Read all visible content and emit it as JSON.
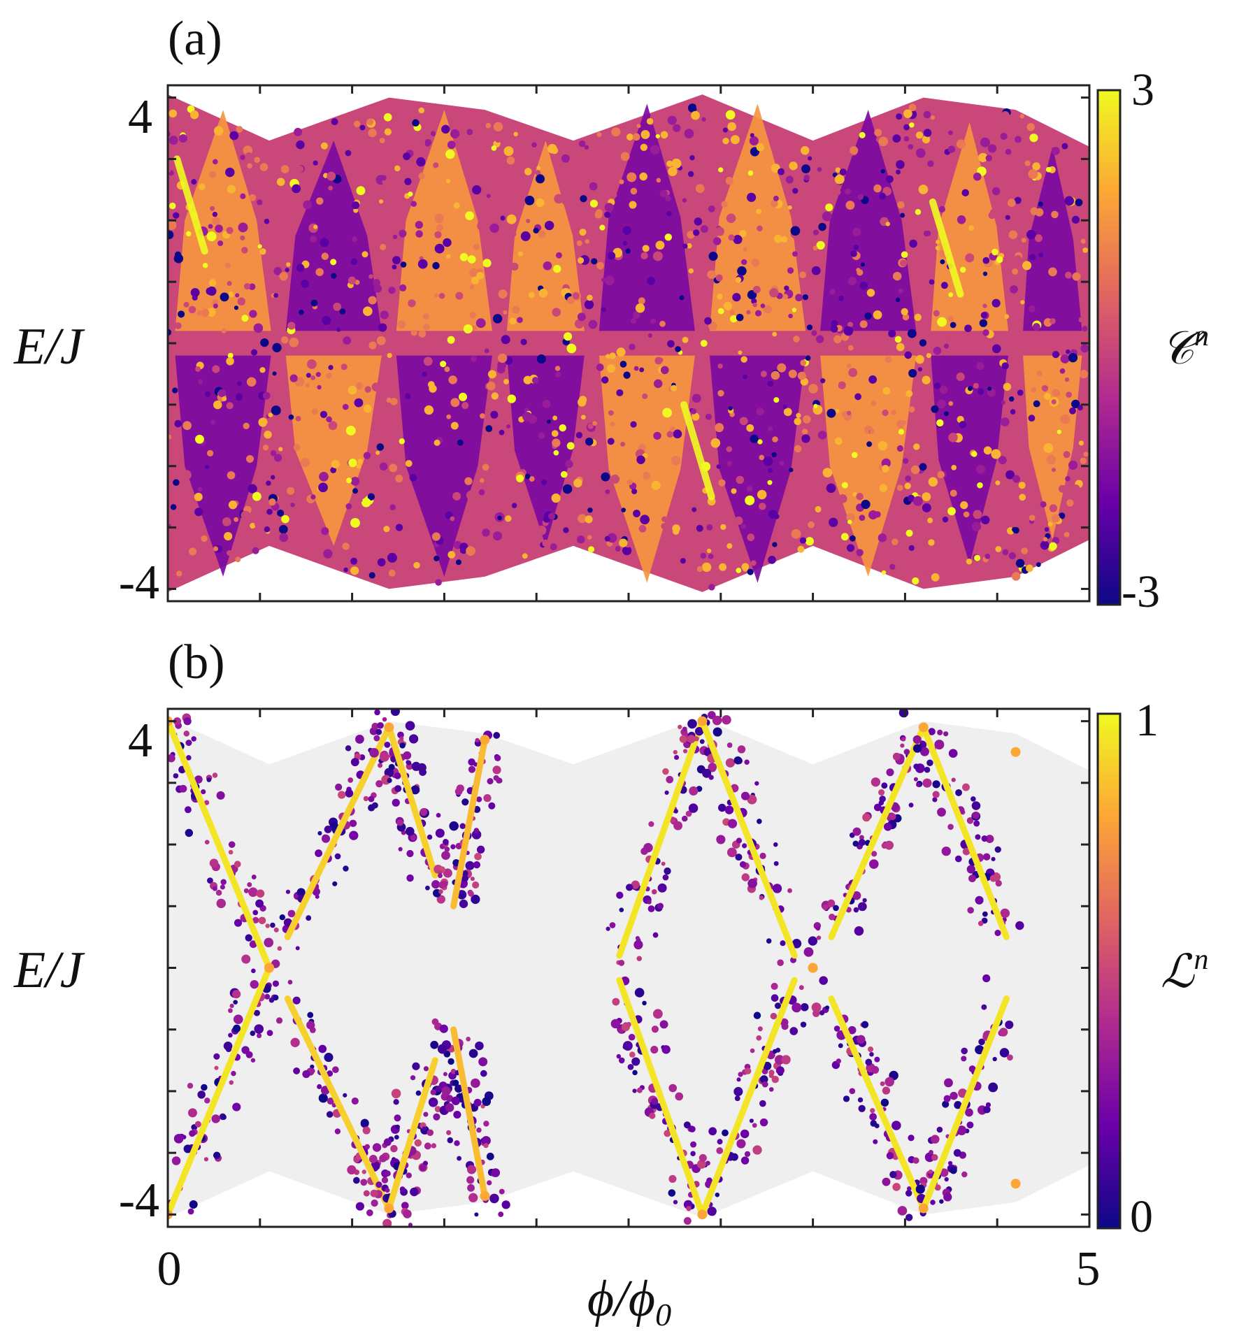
{
  "chart_data": [
    {
      "type": "heatmap",
      "panel_label": "(a)",
      "title": "",
      "xlabel": "",
      "ylabel": "E/J",
      "xlim": [
        0,
        5
      ],
      "ylim": [
        -4.2,
        4.2
      ],
      "yticks": [
        -4,
        -3,
        -2,
        -1,
        0,
        1,
        2,
        3,
        4
      ],
      "ytick_labels": [
        "-4",
        "4"
      ],
      "colorbar": {
        "label": "𝒞",
        "label_sup": "n",
        "min": -3,
        "max": 3,
        "tick_labels": [
          "3",
          "-3"
        ],
        "colormap": "plasma"
      },
      "band_envelope": {
        "x": [
          0,
          0.55,
          1.2,
          1.72,
          2.2,
          2.9,
          3.5,
          4.1,
          4.6,
          5
        ],
        "upper": [
          4.05,
          3.3,
          4.0,
          3.8,
          3.3,
          4.05,
          3.3,
          4.0,
          3.8,
          3.2
        ],
        "lower": [
          -4.05,
          -3.3,
          -4.0,
          -3.8,
          -3.3,
          -4.05,
          -3.3,
          -4.0,
          -3.8,
          -3.2
        ]
      },
      "regions": [
        {
          "x": [
            0,
            0.6
          ],
          "y": [
            0.2,
            3.8
          ],
          "value": 1.5
        },
        {
          "x": [
            0,
            0.6
          ],
          "y": [
            -3.8,
            -0.2
          ],
          "value": -1.5
        },
        {
          "x": [
            0.6,
            1.2
          ],
          "y": [
            0.2,
            3.3
          ],
          "value": -1.5
        },
        {
          "x": [
            0.6,
            1.2
          ],
          "y": [
            -3.3,
            -0.2
          ],
          "value": 1.5
        },
        {
          "x": [
            1.2,
            1.8
          ],
          "y": [
            0.2,
            3.8
          ],
          "value": 1.5
        },
        {
          "x": [
            1.2,
            1.8
          ],
          "y": [
            -3.8,
            -0.2
          ],
          "value": -1.5
        },
        {
          "x": [
            1.8,
            2.3
          ],
          "y": [
            0.2,
            3.3
          ],
          "value": 1.5
        },
        {
          "x": [
            1.8,
            2.3
          ],
          "y": [
            -3.3,
            -0.2
          ],
          "value": -1.5
        },
        {
          "x": [
            2.3,
            2.9
          ],
          "y": [
            0.2,
            3.9
          ],
          "value": -1.5
        },
        {
          "x": [
            2.3,
            2.9
          ],
          "y": [
            -3.9,
            -0.2
          ],
          "value": 1.5
        },
        {
          "x": [
            2.9,
            3.5
          ],
          "y": [
            0.2,
            3.9
          ],
          "value": 1.5
        },
        {
          "x": [
            2.9,
            3.5
          ],
          "y": [
            -3.9,
            -0.2
          ],
          "value": -1.5
        },
        {
          "x": [
            3.5,
            4.1
          ],
          "y": [
            0.2,
            3.8
          ],
          "value": -1.5
        },
        {
          "x": [
            3.5,
            4.1
          ],
          "y": [
            -3.8,
            -0.2
          ],
          "value": 1.5
        },
        {
          "x": [
            4.1,
            4.6
          ],
          "y": [
            0.2,
            3.6
          ],
          "value": 1.5
        },
        {
          "x": [
            4.1,
            4.6
          ],
          "y": [
            -3.6,
            -0.2
          ],
          "value": -1.5
        },
        {
          "x": [
            4.6,
            5
          ],
          "y": [
            0.2,
            3.2
          ],
          "value": -1.5
        },
        {
          "x": [
            4.6,
            5
          ],
          "y": [
            -3.2,
            -0.2
          ],
          "value": 1.5
        }
      ],
      "highlight_streaks": [
        {
          "x0": 0.05,
          "y0": 3.0,
          "x1": 0.2,
          "y1": 1.5,
          "value": 3
        },
        {
          "x0": 2.8,
          "y0": -1.0,
          "x1": 2.95,
          "y1": -2.5,
          "value": 3
        },
        {
          "x0": 4.15,
          "y0": 2.3,
          "x1": 4.3,
          "y1": 0.8,
          "value": 3
        }
      ]
    },
    {
      "type": "scatter",
      "panel_label": "(b)",
      "title": "",
      "xlabel": "ϕ/ϕ",
      "xlabel_sub": "0",
      "ylabel": "E/J",
      "xlim": [
        0,
        5
      ],
      "ylim": [
        -4.2,
        4.2
      ],
      "xticks": [
        0,
        0.5,
        1,
        1.5,
        2,
        2.5,
        3,
        3.5,
        4,
        4.5,
        5
      ],
      "xtick_labels": [
        "0",
        "5"
      ],
      "yticks": [
        -4,
        -3,
        -2,
        -1,
        0,
        1,
        2,
        3,
        4
      ],
      "ytick_labels": [
        "-4",
        "4"
      ],
      "colorbar": {
        "label": "ℒ",
        "label_sup": "n",
        "min": 0,
        "max": 1,
        "tick_labels": [
          "1",
          "0"
        ],
        "colormap": "plasma"
      },
      "apex_points": [
        {
          "x": 0,
          "y": 4
        },
        {
          "x": 0.55,
          "y": 0
        },
        {
          "x": 1.2,
          "y": 3.9
        },
        {
          "x": 1.72,
          "y": 3.7
        },
        {
          "x": 2.9,
          "y": 4
        },
        {
          "x": 3.5,
          "y": 0
        },
        {
          "x": 4.1,
          "y": 3.9
        },
        {
          "x": 4.6,
          "y": 3.5
        }
      ],
      "localized_arcs": [
        {
          "x0": 0,
          "y0": 4,
          "x1": 0.55,
          "y1": 0,
          "value": 0.95
        },
        {
          "x0": 0,
          "y0": -4,
          "x1": 0.55,
          "y1": 0,
          "value": 0.95
        },
        {
          "x0": 0.65,
          "y0": 0.5,
          "x1": 1.2,
          "y1": 3.9,
          "value": 0.9
        },
        {
          "x0": 1.2,
          "y0": 3.9,
          "x1": 1.45,
          "y1": 1.5,
          "value": 0.9
        },
        {
          "x0": 0.65,
          "y0": -0.5,
          "x1": 1.2,
          "y1": -3.9,
          "value": 0.9
        },
        {
          "x0": 1.2,
          "y0": -3.9,
          "x1": 1.45,
          "y1": -1.5,
          "value": 0.9
        },
        {
          "x0": 1.55,
          "y0": 1.0,
          "x1": 1.72,
          "y1": 3.7,
          "value": 0.85
        },
        {
          "x0": 1.55,
          "y0": -1.0,
          "x1": 1.72,
          "y1": -3.7,
          "value": 0.85
        },
        {
          "x0": 2.45,
          "y0": 0.2,
          "x1": 2.9,
          "y1": 4,
          "value": 0.95
        },
        {
          "x0": 2.9,
          "y0": 4,
          "x1": 3.4,
          "y1": 0.2,
          "value": 0.95
        },
        {
          "x0": 2.45,
          "y0": -0.2,
          "x1": 2.9,
          "y1": -4,
          "value": 0.95
        },
        {
          "x0": 2.9,
          "y0": -4,
          "x1": 3.4,
          "y1": -0.2,
          "value": 0.95
        },
        {
          "x0": 3.6,
          "y0": 0.5,
          "x1": 4.1,
          "y1": 3.9,
          "value": 0.95
        },
        {
          "x0": 4.1,
          "y0": 3.9,
          "x1": 4.55,
          "y1": 0.5,
          "value": 0.95
        },
        {
          "x0": 3.6,
          "y0": -0.5,
          "x1": 4.1,
          "y1": -3.9,
          "value": 0.95
        },
        {
          "x0": 4.1,
          "y0": -3.9,
          "x1": 4.55,
          "y1": -0.5,
          "value": 0.95
        }
      ]
    }
  ]
}
